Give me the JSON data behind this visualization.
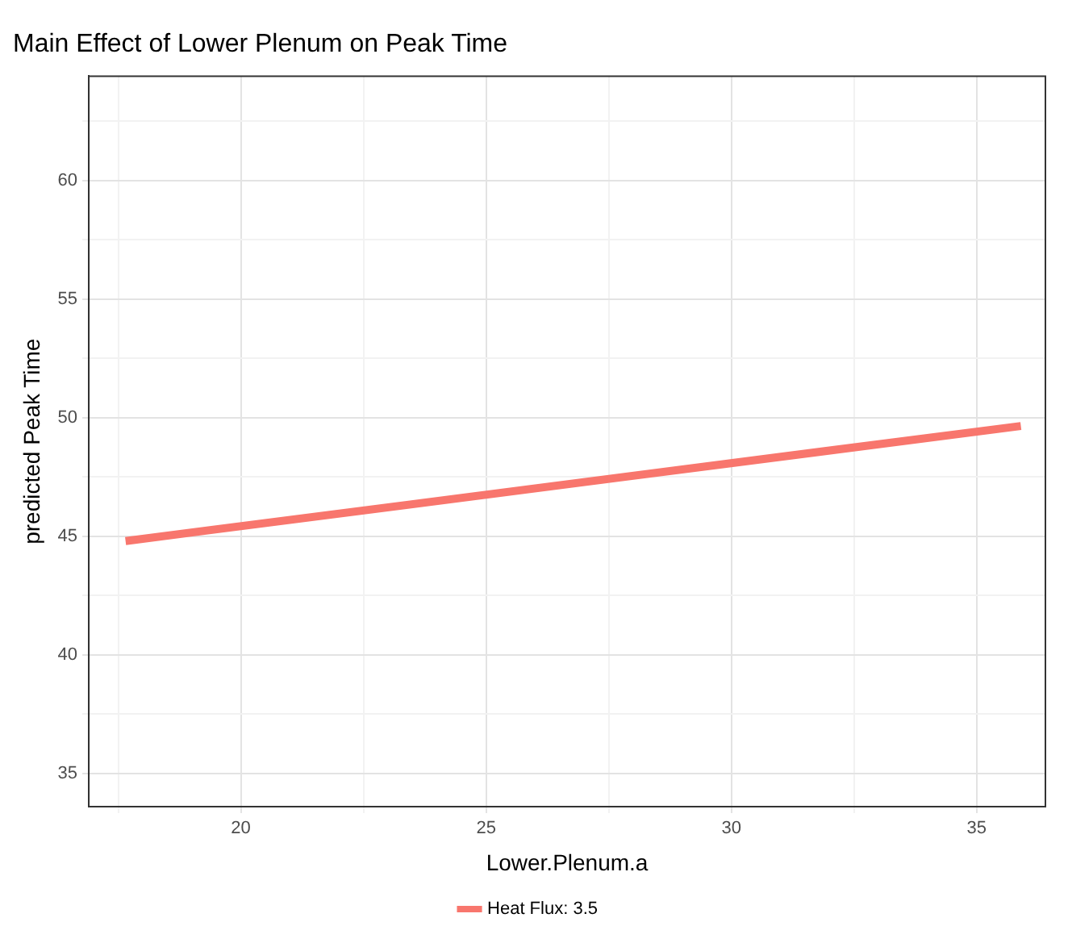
{
  "chart_data": {
    "type": "line",
    "title": "Main Effect of Lower Plenum on Peak Time",
    "xlabel": "Lower.Plenum.a",
    "ylabel": "predicted Peak Time",
    "series": [
      {
        "name": "Heat Flux: 3.5",
        "color": "#f8766d",
        "x": [
          17.65,
          35.9
        ],
        "values": [
          44.8,
          49.65
        ]
      }
    ],
    "xlim": [
      16.9,
      36.4
    ],
    "ylim": [
      33.6,
      64.4
    ],
    "xticks": [
      {
        "value": 17.5,
        "label": null
      },
      20,
      {
        "value": 22.5,
        "label": null
      },
      25,
      {
        "value": 27.5,
        "label": null
      },
      30,
      {
        "value": 32.5,
        "label": null
      },
      35
    ],
    "yticks": [
      {
        "value": 37.5,
        "label": null
      },
      35,
      40,
      {
        "value": 42.5,
        "label": null
      },
      45,
      {
        "value": 47.5,
        "label": null
      },
      50,
      {
        "value": 52.5,
        "label": null
      },
      55,
      {
        "value": 57.5,
        "label": null
      },
      60,
      {
        "value": 62.5,
        "label": null
      }
    ],
    "grid": true,
    "legend": "bottom",
    "marker": "none",
    "line_style": "solid"
  }
}
